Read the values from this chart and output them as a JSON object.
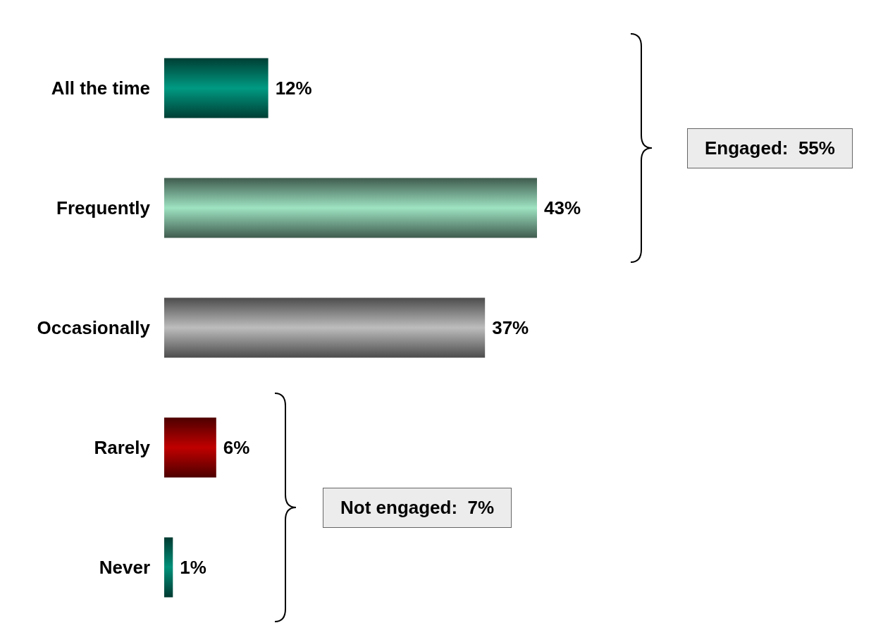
{
  "chart_data": {
    "type": "bar",
    "orientation": "horizontal",
    "value_labels": [
      "12%",
      "43%",
      "37%",
      "6%",
      "1%"
    ],
    "categories": [
      "All the time",
      "Frequently",
      "Occasionally",
      "Rarely",
      "Never"
    ],
    "values": [
      12,
      43,
      37,
      6,
      1
    ],
    "colors": [
      "#009a82",
      "#9ee3c2",
      "#bdbdbd",
      "#c00000",
      "#00917a"
    ],
    "annotations": [
      "Engaged:  55%",
      "Not engaged:  7%"
    ]
  }
}
